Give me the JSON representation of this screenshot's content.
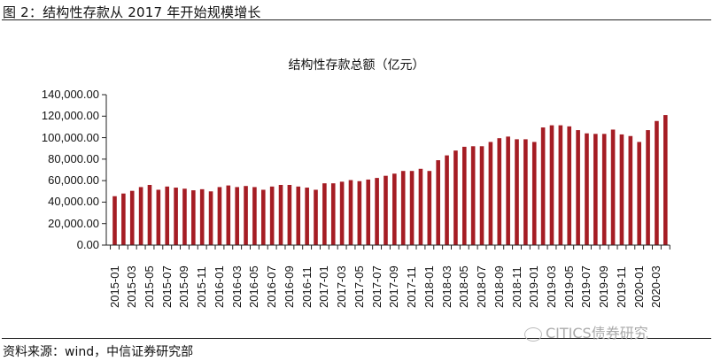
{
  "figure": {
    "title": "图 2：结构性存款从 2017 年开始规模增长",
    "source": "资料来源：wind，中信证券研究部",
    "watermark": "CITICS债券研究"
  },
  "colors": {
    "bar": "#a51d24",
    "axis": "#222222"
  },
  "chart_data": {
    "type": "bar",
    "title": "结构性存款总额（亿元）",
    "xlabel": "",
    "ylabel": "",
    "ylim": [
      0,
      140000
    ],
    "yticks": [
      "0.00",
      "20,000.00",
      "40,000.00",
      "60,000.00",
      "80,000.00",
      "100,000.00",
      "120,000.00",
      "140,000.00"
    ],
    "xtick_labels": [
      "2015-01",
      "2015-03",
      "2015-05",
      "2015-07",
      "2015-09",
      "2015-11",
      "2016-01",
      "2016-03",
      "2016-05",
      "2016-07",
      "2016-09",
      "2016-11",
      "2017-01",
      "2017-03",
      "2017-05",
      "2017-07",
      "2017-09",
      "2017-11",
      "2018-01",
      "2018-03",
      "2018-05",
      "2018-07",
      "2018-09",
      "2018-11",
      "2019-01",
      "2019-03",
      "2019-05",
      "2019-07",
      "2019-09",
      "2019-11",
      "2020-01",
      "2020-03"
    ],
    "grid": false,
    "legend": null,
    "categories": [
      "2015-01",
      "2015-02",
      "2015-03",
      "2015-04",
      "2015-05",
      "2015-06",
      "2015-07",
      "2015-08",
      "2015-09",
      "2015-10",
      "2015-11",
      "2015-12",
      "2016-01",
      "2016-02",
      "2016-03",
      "2016-04",
      "2016-05",
      "2016-06",
      "2016-07",
      "2016-08",
      "2016-09",
      "2016-10",
      "2016-11",
      "2016-12",
      "2017-01",
      "2017-02",
      "2017-03",
      "2017-04",
      "2017-05",
      "2017-06",
      "2017-07",
      "2017-08",
      "2017-09",
      "2017-10",
      "2017-11",
      "2017-12",
      "2018-01",
      "2018-02",
      "2018-03",
      "2018-04",
      "2018-05",
      "2018-06",
      "2018-07",
      "2018-08",
      "2018-09",
      "2018-10",
      "2018-11",
      "2018-12",
      "2019-01",
      "2019-02",
      "2019-03",
      "2019-04",
      "2019-05",
      "2019-06",
      "2019-07",
      "2019-08",
      "2019-09",
      "2019-10",
      "2019-11",
      "2019-12",
      "2020-01",
      "2020-02",
      "2020-03",
      "2020-04"
    ],
    "values": [
      45500,
      48000,
      50500,
      54000,
      56000,
      51500,
      54500,
      53500,
      52500,
      51000,
      52000,
      50000,
      54000,
      55500,
      54000,
      55000,
      54000,
      51500,
      54500,
      56000,
      56000,
      54500,
      53500,
      51500,
      57500,
      57500,
      59000,
      60500,
      59500,
      61000,
      62500,
      64500,
      66500,
      69000,
      69000,
      71000,
      69000,
      79000,
      83500,
      88000,
      91500,
      92000,
      92000,
      96000,
      99500,
      101000,
      98500,
      98500,
      96000,
      109500,
      111500,
      111500,
      110500,
      107000,
      104000,
      103500,
      103500,
      107500,
      103000,
      101500,
      96000,
      107000,
      115500,
      121000
    ]
  }
}
